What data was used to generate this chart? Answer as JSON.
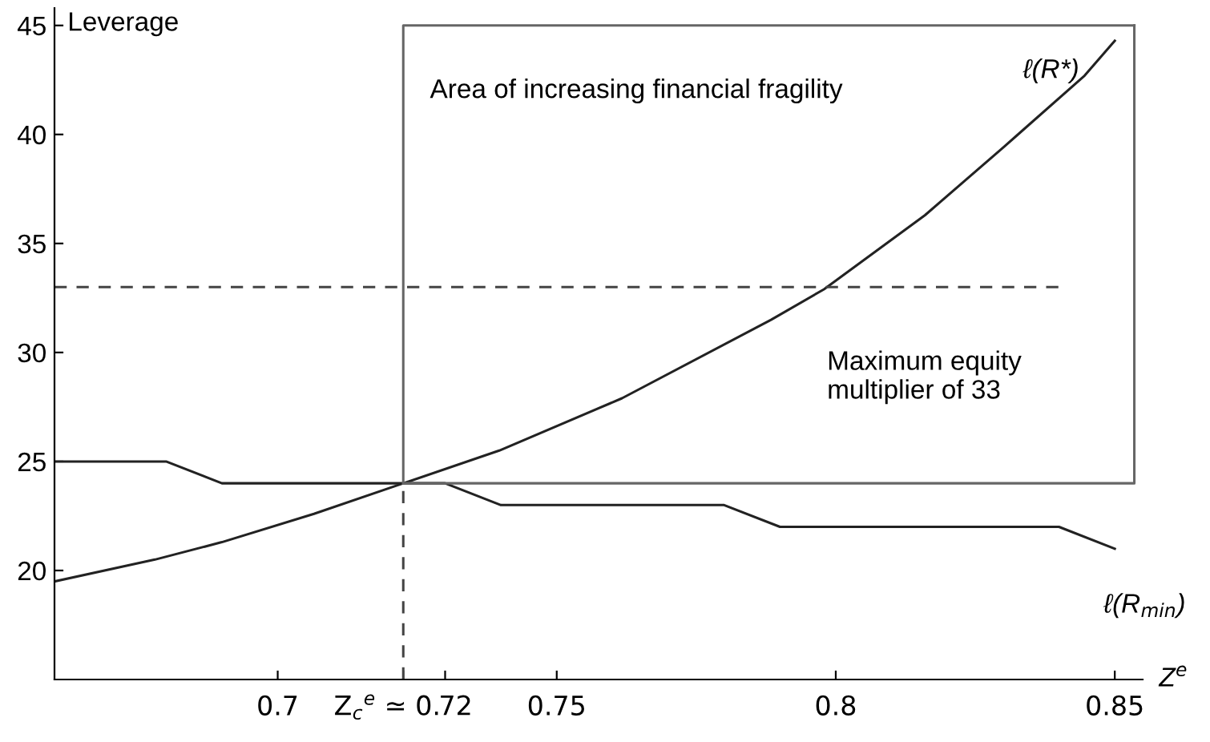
{
  "chart_data": {
    "type": "line",
    "ylabel": "Leverage",
    "xlabel": "Z$^{e}$",
    "xlim": [
      0.66,
      0.855
    ],
    "ylim": [
      15,
      45.8
    ],
    "xticks": [
      0.7,
      {
        "value": 0.7225,
        "label": "Z$_{c}$$^{e}$ ≃ 0.72"
      },
      {
        "value": 0.73,
        "label": null
      },
      0.75,
      0.8,
      0.85
    ],
    "yticks": [
      20,
      25,
      30,
      35,
      40,
      45
    ],
    "grid": false,
    "legend": false,
    "marker": "none",
    "series": [
      {
        "name": "ℓ(R*)",
        "color": "#222222",
        "x": [
          0.66,
          0.678,
          0.69,
          0.7065,
          0.7225,
          0.7397,
          0.7617,
          0.7884,
          0.7979,
          0.816,
          0.83,
          0.8446,
          0.85
        ],
        "values": [
          19.5,
          20.5,
          21.3,
          22.6,
          24.0,
          25.5,
          27.9,
          31.5,
          32.9,
          36.3,
          39.4,
          42.7,
          44.3
        ]
      },
      {
        "name": "ℓ(R$_{min}$)",
        "color": "#222222",
        "x": [
          0.66,
          0.68,
          0.69,
          0.73,
          0.74,
          0.78,
          0.79,
          0.84,
          0.85
        ],
        "values": [
          25,
          25,
          24,
          24,
          23,
          23,
          22,
          22,
          21
        ]
      },
      {
        "color": "#666666",
        "x": [
          0.7225,
          0.7225,
          0.8535
        ],
        "values": [
          24,
          45,
          45
        ]
      },
      {
        "color": "#666666",
        "x": [
          0.7225,
          0.8535,
          0.8535
        ],
        "values": [
          24,
          24,
          45
        ]
      },
      {
        "color": "#444444",
        "line_style": "dashed",
        "x": [
          0.66,
          0.84
        ],
        "values": [
          33,
          33
        ]
      },
      {
        "color": "#444444",
        "line_style": "dashed",
        "x": [
          0.7225,
          0.7225
        ],
        "values": [
          15,
          24
        ]
      }
    ],
    "annotations": [
      "Area of increasing financial fragility",
      "Maximum equity\nmultiplier of 33"
    ]
  }
}
